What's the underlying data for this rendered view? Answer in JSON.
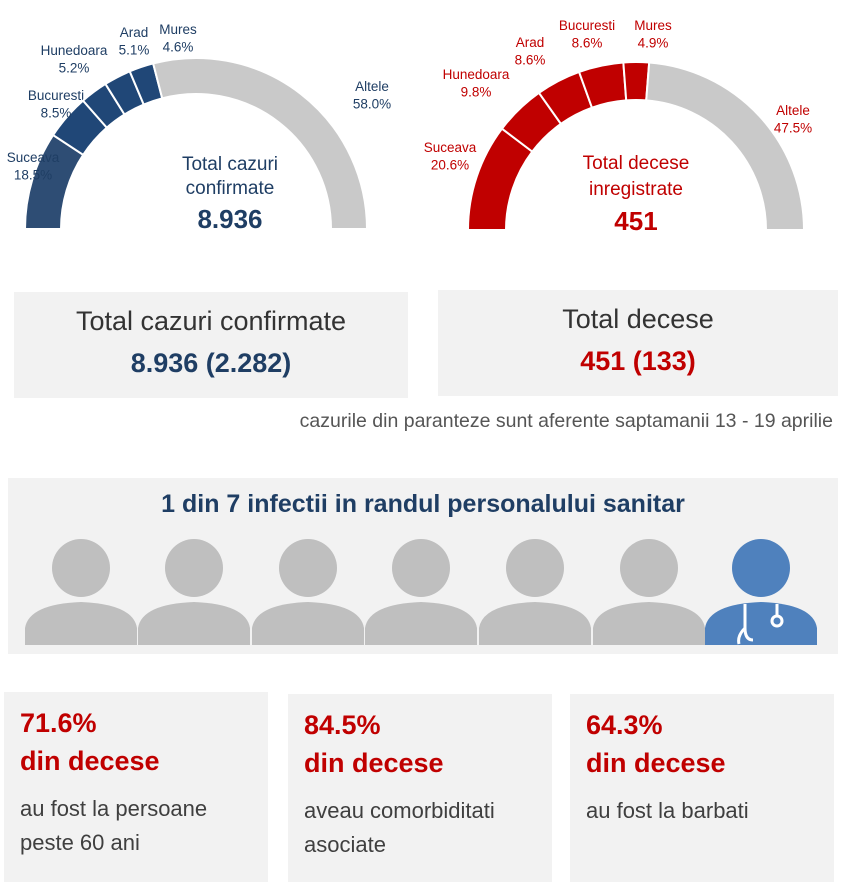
{
  "chart_data": [
    {
      "type": "pie",
      "variant": "semi-donut",
      "title": "Total cazuri confirmate",
      "total_label": "8.936",
      "categories": [
        "Suceava",
        "Bucuresti",
        "Hunedoara",
        "Arad",
        "Mures",
        "Altele"
      ],
      "values": [
        18.5,
        8.5,
        5.2,
        5.1,
        4.6,
        58.0
      ],
      "value_labels": [
        "18.5%",
        "8.5%",
        "5.2%",
        "5.1%",
        "4.6%",
        "58.0%"
      ],
      "colors": [
        "#2e4d74",
        "#204777",
        "#204777",
        "#204777",
        "#204777",
        "#c9c9c9"
      ],
      "text_color": "#1f3e64"
    },
    {
      "type": "pie",
      "variant": "semi-donut",
      "title": "Total decese inregistrate",
      "total_label": "451",
      "categories": [
        "Suceava",
        "Hunedoara",
        "Arad",
        "Bucuresti",
        "Mures",
        "Altele"
      ],
      "values": [
        20.6,
        9.8,
        8.6,
        8.6,
        4.9,
        47.5
      ],
      "value_labels": [
        "20.6%",
        "9.8%",
        "8.6%",
        "8.6%",
        "4.9%",
        "47.5%"
      ],
      "colors": [
        "#c00000",
        "#c00000",
        "#c00000",
        "#c00000",
        "#c00000",
        "#c9c9c9"
      ],
      "text_color": "#c00000"
    }
  ],
  "summary": {
    "cases_title": "Total cazuri confirmate",
    "cases_value": "8.936 (2.282)",
    "deaths_title": "Total decese",
    "deaths_value": "451 (133)",
    "note": "cazurile din paranteze sunt aferente saptamanii 13 - 19 aprilie"
  },
  "staff": {
    "title": "1 din 7 infectii in randul personalului sanitar",
    "total_people": 7,
    "highlighted_people": 1,
    "person_color": "#bfbfbf",
    "highlight_color": "#4f81bd",
    "highlight_icon": "doctor-icon",
    "person_icon": "person-icon"
  },
  "stats": [
    {
      "pct": "71.6%",
      "label": "din decese",
      "desc_lines": [
        "au fost la persoane",
        "peste 60 ani"
      ]
    },
    {
      "pct": "84.5%",
      "label": "din decese",
      "desc_lines": [
        "aveau comorbiditati",
        "asociate"
      ]
    },
    {
      "pct": "64.3%",
      "label": "din decese",
      "desc_lines": [
        "au fost la barbati"
      ]
    }
  ],
  "colors": {
    "blue": "#1f3e64",
    "red": "#c00000",
    "grey_panel": "#f2f2f2"
  }
}
